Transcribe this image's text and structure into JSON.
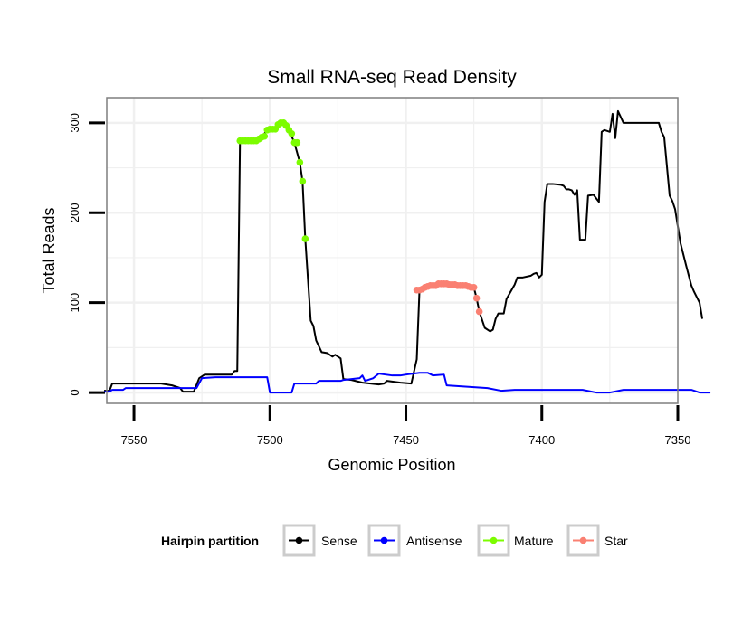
{
  "chart_data": {
    "type": "line",
    "title": "Small RNA-seq Read Density",
    "xlabel": "Genomic Position",
    "ylabel": "Total Reads",
    "x_reversed": true,
    "xlim": [
      7560,
      7350
    ],
    "ylim": [
      -12,
      328
    ],
    "x_ticks": [
      7550,
      7500,
      7450,
      7400,
      7350
    ],
    "y_ticks": [
      0,
      100,
      200,
      300
    ],
    "grid": true,
    "legend": {
      "title": "Hairpin partition",
      "placement": "bottom",
      "entries": [
        "Sense",
        "Antisense",
        "Mature",
        "Star"
      ]
    },
    "colors": {
      "Sense": "#000000",
      "Antisense": "#0000ff",
      "Mature": "#7cfc00",
      "Star": "#fa8072",
      "grid": "#f0f0f0",
      "panel_border": "#7f7f7f"
    },
    "series": [
      {
        "name": "Sense",
        "style": "line",
        "points": [
          [
            7561,
            2
          ],
          [
            7559,
            2
          ],
          [
            7558,
            10
          ],
          [
            7550,
            10
          ],
          [
            7545,
            10
          ],
          [
            7540,
            10
          ],
          [
            7536,
            8
          ],
          [
            7533,
            5
          ],
          [
            7532,
            1
          ],
          [
            7528,
            1
          ],
          [
            7526,
            16
          ],
          [
            7524,
            20
          ],
          [
            7518,
            20
          ],
          [
            7514,
            20
          ],
          [
            7513,
            24
          ],
          [
            7512,
            24
          ],
          [
            7511,
            280
          ],
          [
            7504,
            282
          ],
          [
            7503,
            284
          ],
          [
            7501,
            292
          ],
          [
            7498,
            293
          ],
          [
            7497,
            300
          ],
          [
            7494,
            300
          ],
          [
            7493,
            292
          ],
          [
            7491,
            278
          ],
          [
            7489,
            256
          ],
          [
            7488,
            235
          ],
          [
            7487,
            171
          ],
          [
            7485,
            80
          ],
          [
            7484,
            74
          ],
          [
            7483,
            58
          ],
          [
            7481,
            45
          ],
          [
            7479,
            44
          ],
          [
            7477,
            40
          ],
          [
            7476,
            42
          ],
          [
            7475,
            40
          ],
          [
            7474,
            38
          ],
          [
            7473,
            15
          ],
          [
            7470,
            14
          ],
          [
            7466,
            11
          ],
          [
            7463,
            10
          ],
          [
            7460,
            9
          ],
          [
            7458,
            10
          ],
          [
            7457,
            13
          ],
          [
            7452,
            11
          ],
          [
            7448,
            10
          ],
          [
            7446,
            37
          ],
          [
            7445,
            114
          ],
          [
            7443,
            115
          ],
          [
            7440,
            119
          ],
          [
            7436,
            121
          ],
          [
            7432,
            119
          ],
          [
            7429,
            119
          ],
          [
            7425,
            117
          ],
          [
            7424,
            105
          ],
          [
            7423,
            90
          ],
          [
            7421,
            72
          ],
          [
            7419,
            68
          ],
          [
            7418,
            70
          ],
          [
            7417,
            82
          ],
          [
            7416,
            88
          ],
          [
            7414,
            88
          ],
          [
            7413,
            104
          ],
          [
            7410,
            120
          ],
          [
            7409,
            128
          ],
          [
            7407,
            128
          ],
          [
            7404,
            130
          ],
          [
            7403,
            132
          ],
          [
            7402,
            133
          ],
          [
            7401,
            128
          ],
          [
            7400,
            131
          ],
          [
            7399,
            212
          ],
          [
            7398,
            232
          ],
          [
            7396,
            232
          ],
          [
            7393,
            231
          ],
          [
            7392,
            230
          ],
          [
            7391,
            226
          ],
          [
            7390,
            226
          ],
          [
            7389,
            225
          ],
          [
            7388,
            220
          ],
          [
            7387,
            225
          ],
          [
            7386,
            170
          ],
          [
            7384,
            170
          ],
          [
            7383,
            219
          ],
          [
            7381,
            220
          ],
          [
            7380,
            216
          ],
          [
            7379,
            212
          ],
          [
            7378,
            290
          ],
          [
            7377,
            292
          ],
          [
            7375,
            290
          ],
          [
            7374,
            310
          ],
          [
            7373,
            283
          ],
          [
            7372,
            313
          ],
          [
            7370,
            300
          ],
          [
            7368,
            300
          ],
          [
            7360,
            300
          ],
          [
            7357,
            300
          ],
          [
            7356,
            290
          ],
          [
            7355,
            284
          ],
          [
            7353,
            219
          ],
          [
            7352,
            213
          ],
          [
            7351,
            204
          ],
          [
            7349,
            166
          ],
          [
            7347,
            142
          ],
          [
            7345,
            119
          ],
          [
            7344,
            112
          ],
          [
            7343,
            106
          ],
          [
            7342,
            100
          ],
          [
            7341,
            82
          ]
        ]
      },
      {
        "name": "Antisense",
        "style": "line",
        "points": [
          [
            7561,
            1
          ],
          [
            7559,
            1
          ],
          [
            7558,
            3
          ],
          [
            7554,
            3
          ],
          [
            7553,
            5
          ],
          [
            7545,
            5
          ],
          [
            7530,
            5
          ],
          [
            7527,
            5
          ],
          [
            7525,
            16
          ],
          [
            7520,
            17
          ],
          [
            7512,
            17
          ],
          [
            7506,
            17
          ],
          [
            7501,
            17
          ],
          [
            7500,
            0
          ],
          [
            7492,
            0
          ],
          [
            7491,
            10
          ],
          [
            7483,
            10
          ],
          [
            7482,
            13
          ],
          [
            7474,
            13
          ],
          [
            7473,
            14
          ],
          [
            7467,
            16
          ],
          [
            7466,
            19
          ],
          [
            7465,
            13
          ],
          [
            7462,
            16
          ],
          [
            7460,
            21
          ],
          [
            7455,
            19
          ],
          [
            7452,
            19
          ],
          [
            7450,
            20
          ],
          [
            7445,
            22
          ],
          [
            7442,
            22
          ],
          [
            7440,
            19
          ],
          [
            7436,
            20
          ],
          [
            7435,
            8
          ],
          [
            7430,
            7
          ],
          [
            7420,
            5
          ],
          [
            7415,
            2
          ],
          [
            7410,
            3
          ],
          [
            7400,
            3
          ],
          [
            7385,
            3
          ],
          [
            7380,
            0
          ],
          [
            7375,
            0
          ],
          [
            7370,
            3
          ],
          [
            7355,
            3
          ],
          [
            7345,
            3
          ],
          [
            7342,
            0
          ],
          [
            7338,
            0
          ]
        ]
      },
      {
        "name": "Mature",
        "style": "points",
        "points": [
          [
            7511,
            280
          ],
          [
            7510,
            280
          ],
          [
            7509,
            280
          ],
          [
            7508,
            280
          ],
          [
            7507,
            280
          ],
          [
            7506,
            280
          ],
          [
            7505,
            280
          ],
          [
            7504,
            282
          ],
          [
            7503,
            284
          ],
          [
            7502,
            285
          ],
          [
            7501,
            292
          ],
          [
            7500,
            293
          ],
          [
            7499,
            293
          ],
          [
            7498,
            293
          ],
          [
            7497,
            298
          ],
          [
            7496,
            300
          ],
          [
            7495,
            300
          ],
          [
            7494,
            297
          ],
          [
            7493,
            292
          ],
          [
            7492,
            288
          ],
          [
            7491,
            278
          ],
          [
            7490,
            278
          ],
          [
            7489,
            256
          ],
          [
            7488,
            235
          ],
          [
            7487,
            171
          ]
        ]
      },
      {
        "name": "Star",
        "style": "points",
        "points": [
          [
            7446,
            114
          ],
          [
            7445,
            114
          ],
          [
            7444,
            115
          ],
          [
            7443,
            117
          ],
          [
            7442,
            118
          ],
          [
            7441,
            119
          ],
          [
            7440,
            119
          ],
          [
            7439,
            119
          ],
          [
            7438,
            121
          ],
          [
            7437,
            121
          ],
          [
            7436,
            121
          ],
          [
            7435,
            121
          ],
          [
            7434,
            120
          ],
          [
            7433,
            120
          ],
          [
            7432,
            120
          ],
          [
            7431,
            119
          ],
          [
            7430,
            119
          ],
          [
            7429,
            119
          ],
          [
            7428,
            119
          ],
          [
            7427,
            118
          ],
          [
            7426,
            117
          ],
          [
            7425,
            117
          ],
          [
            7424,
            105
          ],
          [
            7423,
            90
          ]
        ]
      }
    ]
  }
}
